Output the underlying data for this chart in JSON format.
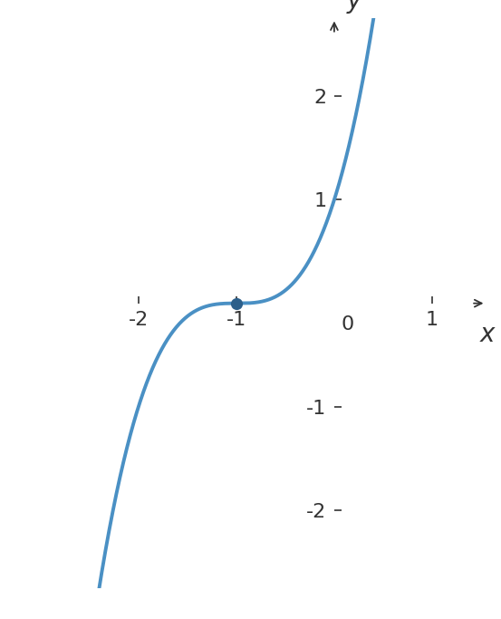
{
  "curve_color": "#4A90C4",
  "curve_linewidth": 2.8,
  "point_x": -1,
  "point_y": 0,
  "point_color": "#2C5F8A",
  "point_size": 90,
  "xlim": [
    -2.8,
    1.55
  ],
  "ylim": [
    -2.75,
    2.75
  ],
  "xticks": [
    -2,
    -1,
    1
  ],
  "yticks": [
    -2,
    -1,
    1,
    2
  ],
  "x_zero_label": "0",
  "xlabel": "x",
  "ylabel": "y",
  "axis_color": "#333333",
  "tick_fontsize": 16,
  "label_fontsize": 20,
  "background_color": "#ffffff",
  "x_start": -2.75,
  "x_end": 1.48
}
